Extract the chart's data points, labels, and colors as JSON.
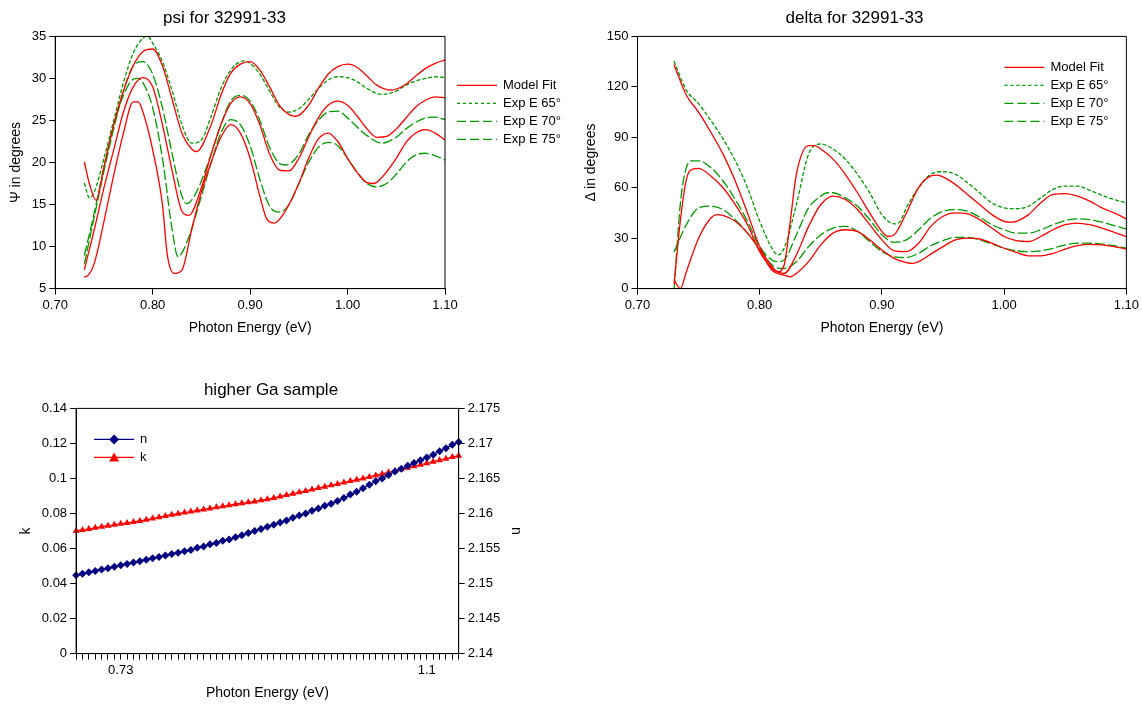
{
  "chart_data": [
    {
      "type": "line",
      "title": "psi for 32991-33",
      "xlabel": "Photon Energy (eV)",
      "ylabel": "Ψ in degrees",
      "xlim": [
        0.7,
        1.1
      ],
      "xticks": [
        {
          "value": 0.7,
          "label": "0.70"
        },
        {
          "value": 0.8,
          "label": "0.80"
        },
        {
          "value": 0.9,
          "label": "0.90"
        },
        {
          "value": 1.0,
          "label": "1.00"
        },
        {
          "value": 1.1,
          "label": "1.10"
        }
      ],
      "ylim": [
        5,
        35
      ],
      "yticks": [
        5,
        10,
        15,
        20,
        25,
        30,
        35
      ],
      "grid": false,
      "legend": "right",
      "series": [
        {
          "name": "Model Fit",
          "color": "#ff0000",
          "line_style": "solid",
          "x": [
            0.73,
            0.735,
            0.742,
            0.75,
            0.76,
            0.77,
            0.78,
            0.79,
            0.8,
            0.81,
            0.82,
            0.83,
            0.84,
            0.845,
            0.86,
            0.87,
            0.88,
            0.89,
            0.9,
            0.91,
            0.92,
            0.93,
            0.94,
            0.947,
            0.96,
            0.97,
            0.98,
            0.99,
            1.0,
            1.01,
            1.02,
            1.03,
            1.045,
            1.06,
            1.07,
            1.08,
            1.09,
            1.1
          ],
          "values": [
            20,
            17.5,
            15.5,
            19.5,
            24.5,
            28.5,
            31.5,
            33.2,
            33.5,
            31.5,
            27.5,
            23.5,
            21.6,
            21.3,
            24.5,
            28,
            30.6,
            31.7,
            32,
            31,
            29,
            26.8,
            25.7,
            25.5,
            26.8,
            28.8,
            30.5,
            31.4,
            31.7,
            31.3,
            30.3,
            29.2,
            28.6,
            29.3,
            30.3,
            31.2,
            31.8,
            32.2
          ]
        },
        {
          "color": "#ff0000",
          "line_style": "solid",
          "x": [
            0.73,
            0.74,
            0.75,
            0.76,
            0.77,
            0.78,
            0.79,
            0.8,
            0.81,
            0.82,
            0.83,
            0.837,
            0.85,
            0.86,
            0.87,
            0.88,
            0.89,
            0.9,
            0.91,
            0.92,
            0.93,
            0.94,
            0.95,
            0.96,
            0.97,
            0.98,
            0.99,
            1.0,
            1.01,
            1.02,
            1.03,
            1.04,
            1.05,
            1.06,
            1.07,
            1.08,
            1.09,
            1.1
          ],
          "values": [
            7.3,
            12,
            17,
            21.5,
            26,
            29,
            30.1,
            29,
            24.5,
            19,
            14.2,
            13.7,
            17,
            21,
            24.5,
            27,
            27.8,
            27,
            24.5,
            21,
            19.1,
            19,
            20.5,
            23,
            25.3,
            26.8,
            27.3,
            26.8,
            25.5,
            24,
            23,
            23.1,
            24,
            25.3,
            26.6,
            27.4,
            27.8,
            27.7
          ]
        },
        {
          "color": "#ff0000",
          "line_style": "solid",
          "x": [
            0.73,
            0.733,
            0.74,
            0.75,
            0.76,
            0.77,
            0.78,
            0.785,
            0.79,
            0.8,
            0.81,
            0.815,
            0.822,
            0.83,
            0.84,
            0.85,
            0.86,
            0.87,
            0.88,
            0.89,
            0.9,
            0.91,
            0.917,
            0.925,
            0.935,
            0.95,
            0.96,
            0.97,
            0.98,
            0.99,
            1.0,
            1.01,
            1.02,
            1.027,
            1.035,
            1.05,
            1.06,
            1.07,
            1.08,
            1.09,
            1.1
          ],
          "values": [
            6.4,
            6.5,
            8,
            13,
            18.5,
            23.5,
            27.2,
            27.2,
            26,
            21.5,
            15,
            9,
            6.8,
            7.2,
            12,
            16.5,
            20,
            23,
            24.5,
            23.5,
            20.5,
            16,
            13.3,
            12.8,
            14,
            17.5,
            20.5,
            22.8,
            23.5,
            22.5,
            20.5,
            18.8,
            17.6,
            17.5,
            18.2,
            20.5,
            22.4,
            23.5,
            23.9,
            23.5,
            22.7
          ]
        },
        {
          "name": "Exp E 65°",
          "color": "#009900",
          "line_style": "dotted",
          "x": [
            0.73,
            0.735,
            0.74,
            0.75,
            0.76,
            0.77,
            0.78,
            0.79,
            0.795,
            0.8,
            0.81,
            0.82,
            0.83,
            0.84,
            0.85,
            0.86,
            0.87,
            0.88,
            0.89,
            0.895,
            0.9,
            0.91,
            0.92,
            0.93,
            0.94,
            0.95,
            0.96,
            0.97,
            0.98,
            0.99,
            1.0,
            1.01,
            1.02,
            1.035,
            1.05,
            1.06,
            1.07,
            1.08,
            1.09,
            1.1
          ],
          "values": [
            17.5,
            15.8,
            16.5,
            20.5,
            25,
            29.5,
            33,
            34.8,
            35,
            34.2,
            32,
            28.5,
            24.5,
            22.3,
            22.7,
            25.5,
            28.8,
            31,
            32,
            32.1,
            31.8,
            30.5,
            28.5,
            26.6,
            26,
            26.4,
            27.5,
            28.8,
            29.8,
            30.2,
            30.1,
            29.6,
            28.8,
            28.1,
            28.5,
            29.2,
            29.7,
            30,
            30.2,
            30.1
          ]
        },
        {
          "name": "Exp E 70°",
          "color": "#009900",
          "line_style": "dashed",
          "x": [
            0.73,
            0.74,
            0.75,
            0.76,
            0.77,
            0.78,
            0.79,
            0.8,
            0.81,
            0.82,
            0.83,
            0.835,
            0.845,
            0.86,
            0.87,
            0.88,
            0.89,
            0.9,
            0.91,
            0.92,
            0.93,
            0.937,
            0.95,
            0.96,
            0.97,
            0.98,
            0.99,
            1.0,
            1.01,
            1.02,
            1.035,
            1.05,
            1.06,
            1.07,
            1.08,
            1.09,
            1.1
          ],
          "values": [
            8,
            13.5,
            19,
            24,
            28.5,
            31.5,
            32,
            30.5,
            26.5,
            21,
            16,
            15.1,
            16.5,
            21,
            24.5,
            27.3,
            28,
            27.3,
            25,
            21.8,
            19.9,
            19.7,
            21,
            23.3,
            25,
            26,
            26.1,
            25.3,
            24.2,
            23.2,
            22.3,
            23,
            24,
            24.8,
            25.3,
            25.4,
            25.1
          ]
        },
        {
          "name": "Exp E 75°",
          "color": "#009900",
          "line_style": "dashed",
          "x": [
            0.73,
            0.74,
            0.75,
            0.76,
            0.77,
            0.78,
            0.785,
            0.79,
            0.8,
            0.81,
            0.82,
            0.826,
            0.835,
            0.85,
            0.86,
            0.87,
            0.88,
            0.89,
            0.9,
            0.91,
            0.92,
            0.93,
            0.94,
            0.95,
            0.96,
            0.97,
            0.98,
            0.99,
            1.0,
            1.01,
            1.02,
            1.03,
            1.04,
            1.05,
            1.06,
            1.07,
            1.08,
            1.09,
            1.1
          ],
          "values": [
            9,
            14,
            19.5,
            24.5,
            28,
            29.9,
            30,
            29.5,
            26.5,
            20.5,
            12,
            8.8,
            10.5,
            16,
            20,
            23.5,
            25.1,
            24.5,
            22,
            18,
            14.8,
            14.1,
            15,
            17.5,
            20,
            21.8,
            22.4,
            22,
            20.5,
            18.8,
            17.5,
            17.1,
            17.5,
            18.6,
            20,
            20.9,
            21.1,
            20.8,
            20.3
          ]
        }
      ]
    },
    {
      "type": "line",
      "title": "delta for 32991-33",
      "xlabel": "Photon Energy (eV)",
      "ylabel": "Δ in degrees",
      "xlim": [
        0.7,
        1.1
      ],
      "xticks": [
        {
          "value": 0.7,
          "label": "0.70"
        },
        {
          "value": 0.8,
          "label": "0.80"
        },
        {
          "value": 0.9,
          "label": "0.90"
        },
        {
          "value": 1.0,
          "label": "1.00"
        },
        {
          "value": 1.1,
          "label": "1.10"
        }
      ],
      "ylim": [
        0,
        150
      ],
      "yticks": [
        0,
        30,
        60,
        90,
        120,
        150
      ],
      "grid": false,
      "legend": "top right",
      "series": [
        {
          "name": "Model Fit",
          "color": "#ff0000",
          "line_style": "solid",
          "x": [
            0.73,
            0.74,
            0.75,
            0.76,
            0.77,
            0.78,
            0.79,
            0.8,
            0.81,
            0.815,
            0.82,
            0.825,
            0.83,
            0.84,
            0.845,
            0.85,
            0.86,
            0.87,
            0.88,
            0.89,
            0.9,
            0.905,
            0.91,
            0.92,
            0.93,
            0.94,
            0.945,
            0.95,
            0.96,
            0.97,
            0.98,
            0.99,
            1.0,
            1.005,
            1.01,
            1.02,
            1.03,
            1.04,
            1.05,
            1.06,
            1.07,
            1.08,
            1.09,
            1.1
          ],
          "values": [
            133,
            115,
            105,
            93,
            80,
            64,
            45,
            25,
            13,
            10,
            14,
            40,
            68,
            85,
            85,
            83,
            77,
            68,
            57,
            45,
            34,
            31,
            32,
            45,
            60,
            67,
            67.5,
            66.5,
            62,
            56,
            50,
            44,
            40,
            39.5,
            40,
            44,
            51,
            56,
            56.5,
            55,
            52,
            48,
            45,
            41.5
          ]
        },
        {
          "color": "#ff0000",
          "line_style": "solid",
          "x": [
            0.73,
            0.735,
            0.74,
            0.745,
            0.75,
            0.76,
            0.77,
            0.78,
            0.79,
            0.8,
            0.81,
            0.815,
            0.82,
            0.83,
            0.84,
            0.85,
            0.86,
            0.87,
            0.88,
            0.89,
            0.9,
            0.91,
            0.92,
            0.93,
            0.94,
            0.95,
            0.96,
            0.97,
            0.98,
            0.99,
            1.0,
            1.01,
            1.02,
            1.03,
            1.04,
            1.05,
            1.06,
            1.07,
            1.08,
            1.09,
            1.1
          ],
          "values": [
            3,
            40,
            65,
            71,
            71.5,
            67,
            60,
            50,
            38,
            22,
            12,
            10,
            9,
            20,
            37,
            50,
            55,
            53,
            47,
            38,
            29,
            22.5,
            22,
            27,
            37,
            43,
            45,
            44.5,
            41,
            36,
            31,
            28.5,
            28,
            31,
            35,
            38,
            39,
            38,
            36,
            33.5,
            31
          ]
        },
        {
          "color": "#ff0000",
          "line_style": "solid",
          "x": [
            0.73,
            0.735,
            0.74,
            0.75,
            0.76,
            0.765,
            0.77,
            0.78,
            0.79,
            0.8,
            0.81,
            0.82,
            0.825,
            0.83,
            0.84,
            0.85,
            0.86,
            0.87,
            0.88,
            0.89,
            0.9,
            0.91,
            0.92,
            0.925,
            0.93,
            0.94,
            0.95,
            0.96,
            0.97,
            0.98,
            0.99,
            1.0,
            1.01,
            1.02,
            1.03,
            1.04,
            1.05,
            1.06,
            1.07,
            1.08,
            1.09,
            1.1
          ],
          "values": [
            5,
            0,
            10,
            30,
            42,
            44,
            43.5,
            40,
            33,
            23,
            11,
            8,
            7,
            9,
            16,
            26,
            33,
            35,
            34,
            29,
            23,
            18,
            15.5,
            15,
            16,
            20.5,
            25,
            29,
            30,
            29.5,
            27,
            24,
            21.5,
            19.5,
            19.5,
            21,
            23.5,
            25.5,
            26.3,
            26,
            25,
            23.5
          ]
        },
        {
          "name": "Exp E 65°",
          "color": "#009900",
          "line_style": "dotted",
          "x": [
            0.73,
            0.74,
            0.75,
            0.76,
            0.77,
            0.78,
            0.79,
            0.8,
            0.81,
            0.815,
            0.82,
            0.83,
            0.84,
            0.85,
            0.86,
            0.87,
            0.88,
            0.89,
            0.9,
            0.91,
            0.915,
            0.92,
            0.93,
            0.94,
            0.95,
            0.96,
            0.97,
            0.98,
            0.99,
            1.0,
            1.01,
            1.02,
            1.03,
            1.04,
            1.05,
            1.06,
            1.07,
            1.08,
            1.09,
            1.1
          ],
          "values": [
            135,
            118,
            110,
            100,
            89,
            76,
            60,
            40,
            24,
            20,
            24,
            50,
            80,
            86,
            83,
            77,
            68,
            57,
            44,
            38.5,
            40,
            48,
            60,
            68,
            69.5,
            68,
            63,
            57,
            51,
            48,
            47.5,
            49,
            54,
            59,
            61,
            61,
            58.5,
            55.5,
            53,
            51
          ]
        },
        {
          "name": "Exp E 70°",
          "color": "#009900",
          "line_style": "dashed",
          "x": [
            0.73,
            0.735,
            0.74,
            0.745,
            0.75,
            0.76,
            0.77,
            0.78,
            0.79,
            0.8,
            0.81,
            0.815,
            0.82,
            0.83,
            0.84,
            0.85,
            0.855,
            0.86,
            0.87,
            0.88,
            0.89,
            0.9,
            0.91,
            0.92,
            0.93,
            0.94,
            0.95,
            0.96,
            0.97,
            0.98,
            0.99,
            1.0,
            1.01,
            1.02,
            1.03,
            1.04,
            1.05,
            1.06,
            1.07,
            1.08,
            1.09,
            1.1
          ],
          "values": [
            0,
            50,
            72,
            76,
            76,
            72,
            64,
            53,
            40,
            25,
            17,
            16,
            17,
            32,
            48,
            55,
            57,
            57,
            54,
            49,
            41,
            32,
            27.5,
            29,
            35,
            42,
            46,
            47,
            46,
            42.5,
            38,
            35,
            33,
            33,
            35,
            38,
            40.5,
            41.5,
            41,
            39.5,
            37.5,
            35.5
          ]
        },
        {
          "name": "Exp E 75°",
          "color": "#009900",
          "line_style": "dashed",
          "x": [
            0.73,
            0.74,
            0.75,
            0.76,
            0.77,
            0.78,
            0.79,
            0.8,
            0.81,
            0.82,
            0.83,
            0.84,
            0.85,
            0.86,
            0.87,
            0.88,
            0.89,
            0.9,
            0.91,
            0.92,
            0.93,
            0.94,
            0.95,
            0.96,
            0.97,
            0.98,
            0.99,
            1.0,
            1.01,
            1.02,
            1.03,
            1.04,
            1.05,
            1.06,
            1.07,
            1.08,
            1.09,
            1.1
          ],
          "values": [
            22,
            38,
            48,
            49,
            47,
            41,
            33,
            24,
            14,
            12,
            16,
            25,
            32,
            36,
            37,
            34,
            28,
            22,
            19,
            18.5,
            21,
            25.5,
            28.5,
            30.5,
            30.5,
            29,
            26.5,
            24,
            22.5,
            22,
            22.5,
            24,
            26,
            27,
            27,
            26.5,
            25.5,
            24
          ]
        }
      ]
    },
    {
      "type": "line",
      "title": "higher Ga sample",
      "xlabel": "Photon Energy (eV)",
      "ylabel": "k",
      "y2label": "n",
      "categories": [
        null,
        null,
        null,
        null,
        null,
        null,
        null,
        "0.73",
        null,
        null,
        null,
        null,
        null,
        null,
        null,
        null,
        null,
        null,
        null,
        null,
        null,
        null,
        null,
        null,
        null,
        null,
        null,
        null,
        null,
        null,
        null,
        null,
        null,
        null,
        null,
        null,
        null,
        null,
        null,
        null,
        null,
        null,
        null,
        null,
        null,
        null,
        null,
        null,
        null,
        null,
        null,
        null,
        null,
        null,
        null,
        "1.1",
        null,
        null,
        null,
        null,
        null
      ],
      "ylim": [
        0,
        0.14
      ],
      "yticks": [
        0,
        0.02,
        0.04,
        0.06,
        0.08,
        0.1,
        0.12,
        0.14
      ],
      "y2lim": [
        2.14,
        2.175
      ],
      "y2ticks": [
        2.14,
        2.145,
        2.15,
        2.155,
        2.16,
        2.165,
        2.17,
        2.175
      ],
      "grid": false,
      "legend": "top left",
      "series": [
        {
          "name": "n",
          "color": "#000080",
          "axis": "y2",
          "marker": "diamond",
          "line_style": "solid",
          "values": [
            2.1512,
            2.1514,
            2.1516,
            2.1518,
            2.152,
            2.1522,
            2.1524,
            2.1526,
            2.1528,
            2.153,
            2.1532,
            2.1534,
            2.1536,
            2.1538,
            2.154,
            2.1542,
            2.1544,
            2.1546,
            2.1548,
            2.1551,
            2.1553,
            2.1556,
            2.1558,
            2.1561,
            2.1563,
            2.1566,
            2.1569,
            2.1572,
            2.1575,
            2.1578,
            2.1581,
            2.1584,
            2.1587,
            2.159,
            2.1594,
            2.1597,
            2.16,
            2.1604,
            2.1607,
            2.1611,
            2.1614,
            2.1618,
            2.1622,
            2.1627,
            2.1631,
            2.1636,
            2.1641,
            2.1646,
            2.165,
            2.1655,
            2.166,
            2.1664,
            2.1668,
            2.1672,
            2.1676,
            2.168,
            2.1684,
            2.1689,
            2.1693,
            2.1698,
            2.1702
          ]
        },
        {
          "name": "k",
          "color": "#ff0000",
          "marker": "triangle",
          "line_style": "solid",
          "values": [
            0.07,
            0.0706,
            0.0712,
            0.0718,
            0.0724,
            0.073,
            0.0735,
            0.0741,
            0.0746,
            0.0752,
            0.0757,
            0.0764,
            0.0771,
            0.0778,
            0.0786,
            0.0793,
            0.0799,
            0.0805,
            0.0811,
            0.0817,
            0.0823,
            0.0829,
            0.0835,
            0.0841,
            0.0847,
            0.0853,
            0.0858,
            0.0864,
            0.0869,
            0.0875,
            0.0881,
            0.0889,
            0.0897,
            0.0905,
            0.0913,
            0.0921,
            0.0929,
            0.0937,
            0.0945,
            0.0953,
            0.0961,
            0.0969,
            0.0977,
            0.0985,
            0.0992,
            0.1,
            0.1009,
            0.1017,
            0.1026,
            0.1035,
            0.1043,
            0.1052,
            0.1061,
            0.1069,
            0.1078,
            0.1087,
            0.1096,
            0.1104,
            0.1113,
            0.1122,
            0.113
          ]
        }
      ]
    }
  ]
}
